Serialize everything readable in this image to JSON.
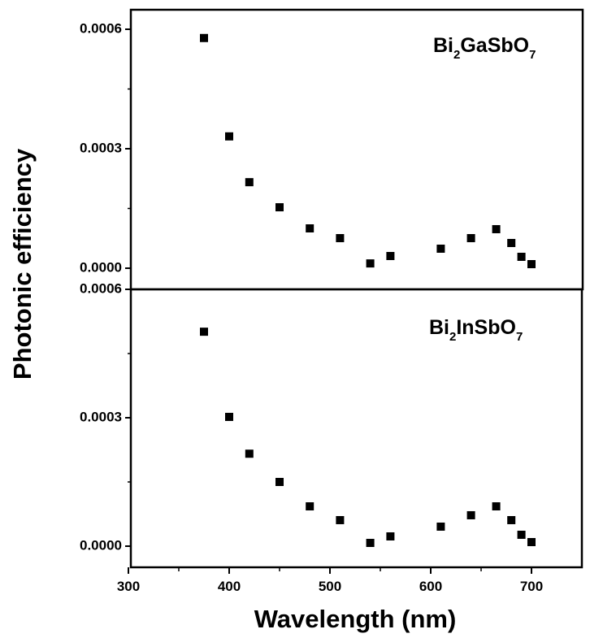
{
  "chart_data": {
    "type": "scatter",
    "layout": "two vertically stacked panels sharing x-axis",
    "xlabel": "Wavelength (nm)",
    "ylabel": "Photonic efficiency",
    "xlim": [
      300,
      750
    ],
    "x_ticks": [
      "300",
      "400",
      "500",
      "600",
      "700"
    ],
    "x": [
      375,
      400,
      420,
      450,
      480,
      510,
      540,
      560,
      610,
      640,
      665,
      680,
      690,
      700
    ],
    "grid": false,
    "marker": "filled square",
    "panels": [
      {
        "label": "Bi2GaSbO7",
        "label_parts": {
          "a": "Bi",
          "sub1": "2",
          "b": "GaSbO",
          "sub2": "7"
        },
        "ylim": [
          0,
          0.0006
        ],
        "y_ticks": [
          "0.0000",
          "0.0003",
          "0.0006"
        ],
        "values": [
          0.000578,
          0.000331,
          0.000216,
          0.000153,
          0.0001,
          7.55e-05,
          1.2e-05,
          3.06e-05,
          4.9e-05,
          7.55e-05,
          9.8e-05,
          6.33e-05,
          2.86e-05,
          1.02e-05
        ]
      },
      {
        "label": "Bi2InSbO7",
        "label_parts": {
          "a": "Bi",
          "sub1": "2",
          "b": "InSbO",
          "sub2": "7"
        },
        "ylim": [
          0,
          0.0006
        ],
        "y_ticks": [
          "0.0000",
          "0.0003",
          "0.0006"
        ],
        "values": [
          0.000501,
          0.000302,
          0.000216,
          0.00015,
          9.3e-05,
          6.08e-05,
          7.6e-06,
          2.28e-05,
          4.56e-05,
          7.22e-05,
          9.3e-05,
          6.08e-05,
          2.66e-05,
          9.5e-06
        ]
      }
    ]
  },
  "colors": {
    "marker": "#000000",
    "axis": "#000000",
    "background": "#ffffff"
  }
}
